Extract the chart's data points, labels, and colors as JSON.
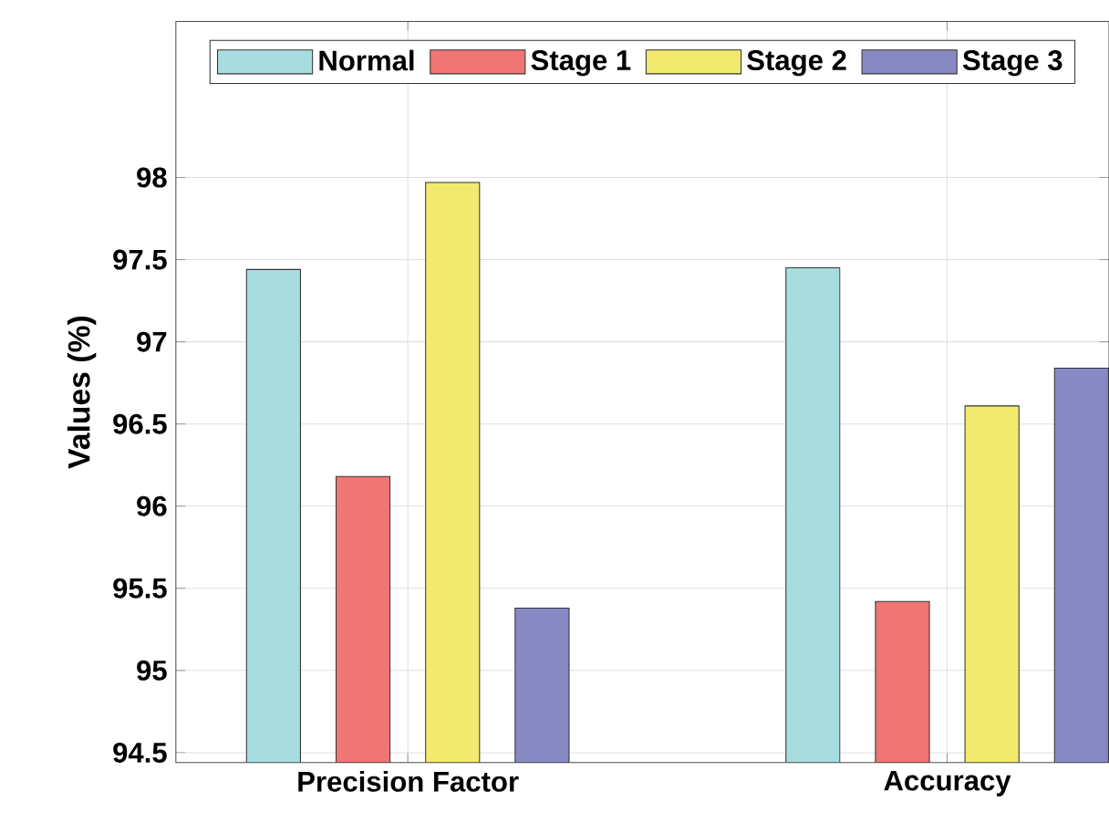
{
  "chart_data": {
    "type": "bar",
    "ylabel": "Values (%)",
    "categories": [
      "Precision Factor",
      "Accuracy"
    ],
    "series": [
      {
        "name": "Normal",
        "color": "#a8dcdf",
        "values": [
          97.44,
          97.45
        ]
      },
      {
        "name": "Stage 1",
        "color": "#f07575",
        "values": [
          96.18,
          95.42
        ]
      },
      {
        "name": "Stage 2",
        "color": "#f2ea6e",
        "values": [
          97.97,
          96.61
        ]
      },
      {
        "name": "Stage 3",
        "color": "#8789c2",
        "values": [
          95.38,
          96.84
        ]
      }
    ],
    "ylim": [
      94.44,
      98.95
    ],
    "yticks": [
      94.5,
      95,
      95.5,
      96,
      96.5,
      97,
      97.5,
      98
    ],
    "grid": true,
    "legend": "top"
  }
}
